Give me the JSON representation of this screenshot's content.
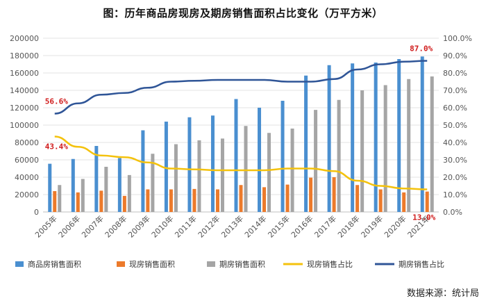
{
  "chart_data": {
    "type": "bar+line",
    "title": "图：历年商品房现房及期房销售面积占比变化（万平方米）",
    "categories": [
      "2005年",
      "2006年",
      "2007年",
      "2008年",
      "2009年",
      "2010年",
      "2011年",
      "2012年",
      "2013年",
      "2014年",
      "2015年",
      "2016年",
      "2017年",
      "2018年",
      "2019年",
      "2020年",
      "2021年"
    ],
    "y_left": {
      "min": 0,
      "max": 200000,
      "ticks": [
        "0",
        "20000",
        "40000",
        "60000",
        "80000",
        "100000",
        "120000",
        "140000",
        "160000",
        "180000",
        "200000"
      ]
    },
    "y_right": {
      "min": 0,
      "max": 100,
      "ticks": [
        "0.0%",
        "10.0%",
        "20.0%",
        "30.0%",
        "40.0%",
        "50.0%",
        "60.0%",
        "70.0%",
        "80.0%",
        "90.0%",
        "100.0%"
      ]
    },
    "bar_series": [
      {
        "name": "商品房销售面积",
        "color": "#4a8fd0",
        "values": [
          55500,
          61000,
          76000,
          62000,
          94000,
          104000,
          109000,
          111000,
          130000,
          120000,
          128000,
          157000,
          169000,
          171000,
          172000,
          176000,
          179000
        ]
      },
      {
        "name": "现房销售面积",
        "color": "#ec7a2b",
        "values": [
          24000,
          22500,
          24500,
          18500,
          26000,
          26000,
          26500,
          26000,
          31000,
          28500,
          31500,
          39500,
          40000,
          31000,
          26000,
          22500,
          23500
        ]
      },
      {
        "name": "期房销售面积",
        "color": "#a5a5a5",
        "values": [
          31000,
          38000,
          52000,
          42500,
          67000,
          78000,
          82500,
          84500,
          99000,
          91000,
          96000,
          117500,
          129000,
          140000,
          146000,
          153000,
          156000
        ]
      }
    ],
    "line_series": [
      {
        "name": "现房销售占比",
        "color": "#f4c20d",
        "values": [
          43.4,
          37.5,
          32.5,
          31.5,
          28.5,
          25.0,
          24.5,
          24.0,
          24.0,
          24.0,
          25.0,
          25.0,
          23.5,
          18.0,
          15.0,
          13.5,
          13.0
        ]
      },
      {
        "name": "期房销售占比",
        "color": "#2f5597",
        "values": [
          56.6,
          62.5,
          67.5,
          68.5,
          71.5,
          75.0,
          75.5,
          76.0,
          76.0,
          76.0,
          75.0,
          75.0,
          76.5,
          82.0,
          85.0,
          86.5,
          87.0
        ]
      }
    ],
    "annotations": [
      "56.6%",
      "43.4%",
      "87.0%",
      "13.0%"
    ],
    "legend": [
      "商品房销售面积",
      "现房销售面积",
      "期房销售面积",
      "现房销售占比",
      "期房销售占比"
    ],
    "legend_position": "bottom",
    "source": "数据来源：统计局"
  }
}
